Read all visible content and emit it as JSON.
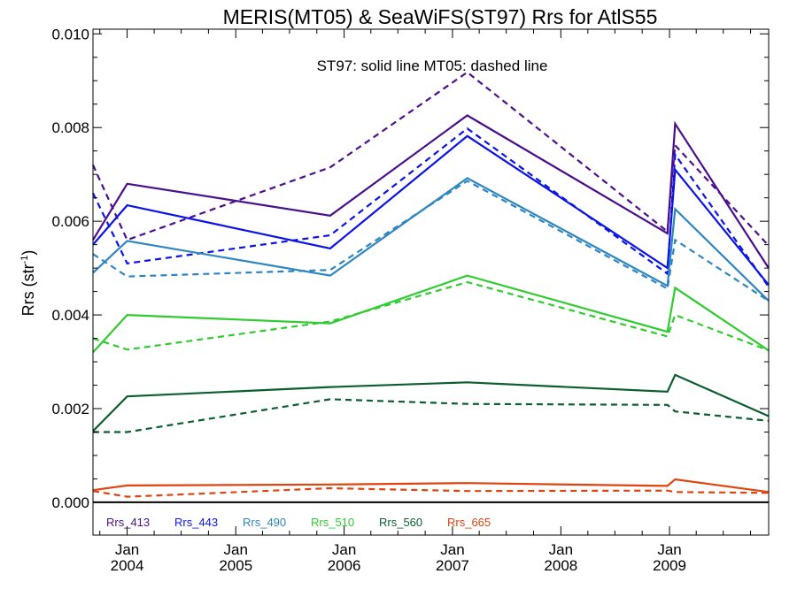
{
  "chart_data": {
    "type": "line",
    "title": "MERIS(MT05) & SeaWiFS(ST97)  Rrs for AtlS55",
    "annotation": "ST97: solid line   MT05: dashed line",
    "ylabel": "Rrs (str",
    "ylabel_sup": "-1",
    "ylabel_close": ")",
    "ylim": [
      -0.0007,
      0.0101
    ],
    "xlim": [
      "2003-09-08",
      "2009-12-01"
    ],
    "y_ticks": [
      {
        "value": 0.0,
        "label": "0.000"
      },
      {
        "value": 0.002,
        "label": "0.002"
      },
      {
        "value": 0.004,
        "label": "0.004"
      },
      {
        "value": 0.006,
        "label": "0.006"
      },
      {
        "value": 0.008,
        "label": "0.008"
      },
      {
        "value": 0.01,
        "label": "0.010"
      }
    ],
    "x_ticks": [
      {
        "date": "2004-01-01",
        "month": "Jan",
        "year": "2004"
      },
      {
        "date": "2005-01-01",
        "month": "Jan",
        "year": "2005"
      },
      {
        "date": "2006-01-01",
        "month": "Jan",
        "year": "2006"
      },
      {
        "date": "2007-01-01",
        "month": "Jan",
        "year": "2007"
      },
      {
        "date": "2008-01-01",
        "month": "Jan",
        "year": "2008"
      },
      {
        "date": "2009-01-01",
        "month": "Jan",
        "year": "2009"
      }
    ],
    "grid": false,
    "legend_position": "bottom-left",
    "series": [
      {
        "name": "Rrs_413",
        "sensor": "ST97",
        "style": "solid",
        "color": "#4b0f8c",
        "x": [
          "2003-09-08",
          "2004-01-01",
          "2005-11-15",
          "2007-02-20",
          "2008-12-25",
          "2009-01-20",
          "2009-12-01"
        ],
        "y": [
          0.0056,
          0.0068,
          0.00612,
          0.00826,
          0.00574,
          0.00808,
          0.005
        ]
      },
      {
        "name": "Rrs_413",
        "sensor": "MT05",
        "style": "dashed",
        "color": "#4b0f8c",
        "x": [
          "2003-09-08",
          "2004-01-01",
          "2005-11-15",
          "2007-02-20",
          "2008-12-25",
          "2009-01-20",
          "2009-12-01"
        ],
        "y": [
          0.0072,
          0.0056,
          0.00715,
          0.00918,
          0.00578,
          0.00762,
          0.00548
        ]
      },
      {
        "name": "Rrs_443",
        "sensor": "ST97",
        "style": "solid",
        "color": "#0a14e6",
        "x": [
          "2003-09-08",
          "2004-01-01",
          "2005-11-15",
          "2007-02-20",
          "2008-12-25",
          "2009-01-20",
          "2009-12-01"
        ],
        "y": [
          0.0055,
          0.00634,
          0.00542,
          0.00782,
          0.005,
          0.0071,
          0.00464
        ]
      },
      {
        "name": "Rrs_443",
        "sensor": "MT05",
        "style": "dashed",
        "color": "#0a14e6",
        "x": [
          "2003-09-08",
          "2004-01-01",
          "2005-11-15",
          "2007-02-20",
          "2008-12-25",
          "2009-01-20",
          "2009-12-01"
        ],
        "y": [
          0.0066,
          0.0051,
          0.0057,
          0.00798,
          0.00488,
          0.00742,
          0.0046
        ]
      },
      {
        "name": "Rrs_490",
        "sensor": "ST97",
        "style": "solid",
        "color": "#2e86c1",
        "x": [
          "2003-09-08",
          "2004-01-01",
          "2005-11-15",
          "2007-02-20",
          "2008-12-25",
          "2009-01-20",
          "2009-12-01"
        ],
        "y": [
          0.0049,
          0.00558,
          0.00484,
          0.00692,
          0.00462,
          0.00626,
          0.0043
        ]
      },
      {
        "name": "Rrs_490",
        "sensor": "MT05",
        "style": "dashed",
        "color": "#2e86c1",
        "x": [
          "2003-09-08",
          "2004-01-01",
          "2005-11-15",
          "2007-02-20",
          "2008-12-25",
          "2009-01-20",
          "2009-12-01"
        ],
        "y": [
          0.0053,
          0.00482,
          0.00496,
          0.00686,
          0.00456,
          0.0056,
          0.0043
        ]
      },
      {
        "name": "Rrs_510",
        "sensor": "ST97",
        "style": "solid",
        "color": "#2ecc2e",
        "x": [
          "2003-09-08",
          "2004-01-01",
          "2005-11-15",
          "2007-02-20",
          "2008-12-25",
          "2009-01-20",
          "2009-12-01"
        ],
        "y": [
          0.0032,
          0.004,
          0.00382,
          0.00484,
          0.00364,
          0.00458,
          0.00324
        ]
      },
      {
        "name": "Rrs_510",
        "sensor": "MT05",
        "style": "dashed",
        "color": "#2ecc2e",
        "x": [
          "2003-09-08",
          "2004-01-01",
          "2005-11-15",
          "2007-02-20",
          "2008-12-25",
          "2009-01-20",
          "2009-12-01"
        ],
        "y": [
          0.0035,
          0.00326,
          0.00386,
          0.0047,
          0.00354,
          0.004,
          0.00324
        ]
      },
      {
        "name": "Rrs_560",
        "sensor": "ST97",
        "style": "solid",
        "color": "#0b5e2e",
        "x": [
          "2003-09-08",
          "2004-01-01",
          "2005-11-15",
          "2007-02-20",
          "2008-12-25",
          "2009-01-20",
          "2009-12-01"
        ],
        "y": [
          0.00152,
          0.00226,
          0.00246,
          0.00256,
          0.00236,
          0.00272,
          0.00184
        ]
      },
      {
        "name": "Rrs_560",
        "sensor": "MT05",
        "style": "dashed",
        "color": "#0b5e2e",
        "x": [
          "2003-09-08",
          "2004-01-01",
          "2005-11-15",
          "2007-02-20",
          "2008-12-25",
          "2009-01-20",
          "2009-12-01"
        ],
        "y": [
          0.0015,
          0.0015,
          0.0022,
          0.0021,
          0.00208,
          0.00194,
          0.00174
        ]
      },
      {
        "name": "Rrs_665",
        "sensor": "ST97",
        "style": "solid",
        "color": "#e0440e",
        "x": [
          "2003-09-08",
          "2004-01-01",
          "2005-11-15",
          "2007-02-20",
          "2008-12-25",
          "2009-01-20",
          "2009-12-01"
        ],
        "y": [
          0.00026,
          0.00036,
          0.00038,
          0.00041,
          0.00035,
          0.00049,
          0.00022
        ]
      },
      {
        "name": "Rrs_665",
        "sensor": "MT05",
        "style": "dashed",
        "color": "#e0440e",
        "x": [
          "2003-09-08",
          "2004-01-01",
          "2005-11-15",
          "2007-02-20",
          "2008-12-25",
          "2009-01-20",
          "2009-12-01"
        ],
        "y": [
          0.00024,
          0.00012,
          0.0003,
          0.00024,
          0.00025,
          0.00022,
          0.0002
        ]
      }
    ],
    "legend": [
      {
        "label": "Rrs_413",
        "color": "#4b0f8c"
      },
      {
        "label": "Rrs_443",
        "color": "#0a14e6"
      },
      {
        "label": "Rrs_490",
        "color": "#2e86c1"
      },
      {
        "label": "Rrs_510",
        "color": "#2ecc2e"
      },
      {
        "label": "Rrs_560",
        "color": "#0b5e2e"
      },
      {
        "label": "Rrs_665",
        "color": "#e0440e"
      }
    ]
  }
}
